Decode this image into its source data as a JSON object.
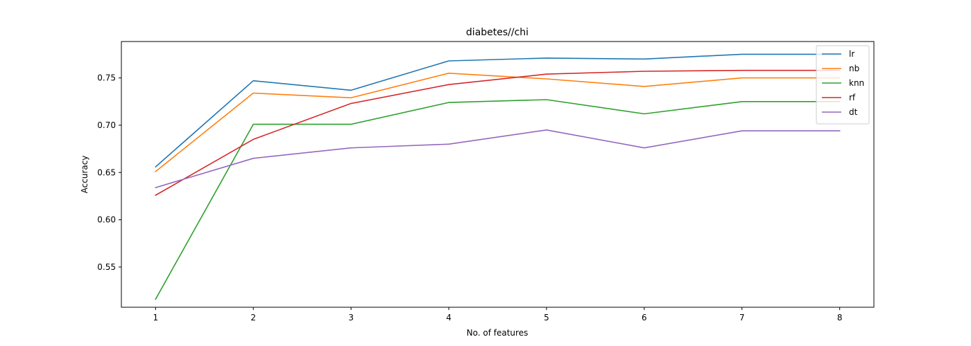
{
  "chart_data": {
    "type": "line",
    "title": "diabetes//chi",
    "xlabel": "No. of features",
    "ylabel": "Accuracy",
    "x": [
      1,
      2,
      3,
      4,
      5,
      6,
      7,
      8
    ],
    "xticks": [
      "1",
      "2",
      "3",
      "4",
      "5",
      "6",
      "7",
      "8"
    ],
    "yticks": [
      "0.55",
      "0.60",
      "0.65",
      "0.70",
      "0.75"
    ],
    "xlim": [
      0.65,
      8.35
    ],
    "ylim": [
      0.5075,
      0.7885
    ],
    "grid": false,
    "legend_position": "top-right",
    "series": [
      {
        "name": "lr",
        "color": "#1f77b4",
        "values": [
          0.656,
          0.747,
          0.737,
          0.768,
          0.771,
          0.77,
          0.775,
          0.775
        ]
      },
      {
        "name": "nb",
        "color": "#ff7f0e",
        "values": [
          0.651,
          0.734,
          0.729,
          0.755,
          0.749,
          0.741,
          0.75,
          0.75
        ]
      },
      {
        "name": "knn",
        "color": "#2ca02c",
        "values": [
          0.516,
          0.701,
          0.701,
          0.724,
          0.727,
          0.712,
          0.725,
          0.725
        ]
      },
      {
        "name": "rf",
        "color": "#d62728",
        "values": [
          0.626,
          0.685,
          0.723,
          0.743,
          0.754,
          0.757,
          0.758,
          0.758
        ]
      },
      {
        "name": "dt",
        "color": "#9467bd",
        "values": [
          0.634,
          0.665,
          0.676,
          0.68,
          0.695,
          0.676,
          0.694,
          0.694
        ]
      }
    ]
  }
}
